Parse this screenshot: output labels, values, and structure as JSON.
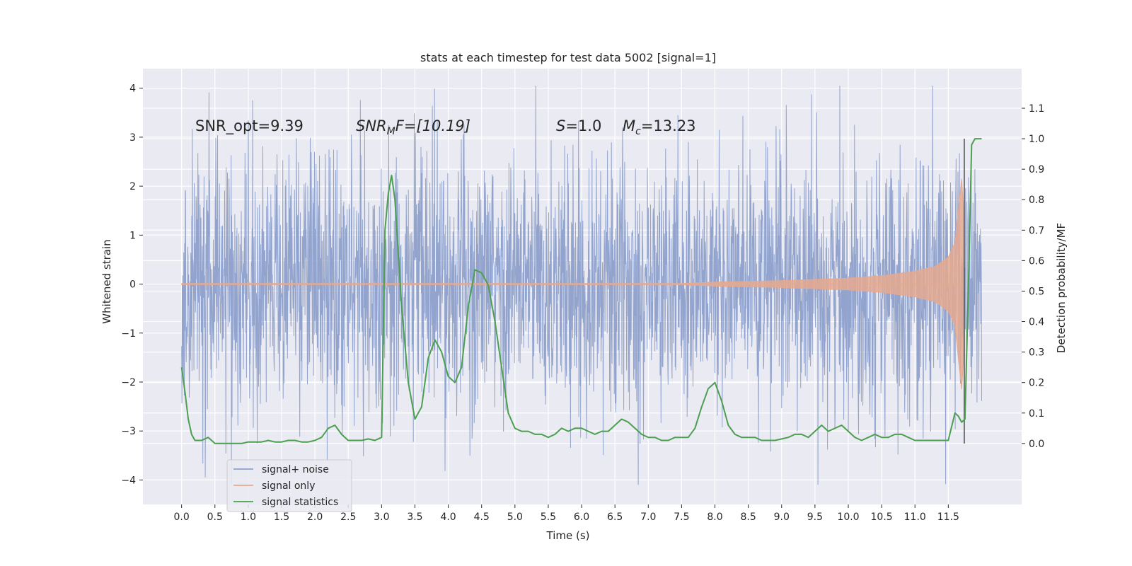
{
  "chart_data": {
    "type": "line",
    "title": "stats at each timestep for test data 5002 [signal=1]",
    "xlabel": "Time (s)",
    "ylabel_left": "Whitened strain",
    "ylabel_right": "Detection probability/MF",
    "xlim": [
      -0.58,
      12.6
    ],
    "ylim_left": [
      -4.5,
      4.4
    ],
    "ylim_right": [
      -0.2,
      1.23
    ],
    "x_ticks": [
      0.0,
      0.5,
      1.0,
      1.5,
      2.0,
      2.5,
      3.0,
      3.5,
      4.0,
      4.5,
      5.0,
      5.5,
      6.0,
      6.5,
      7.0,
      7.5,
      8.0,
      8.5,
      9.0,
      9.5,
      10.0,
      10.5,
      11.0,
      11.5
    ],
    "x_tick_labels": [
      "0.0",
      "0.5",
      "1.0",
      "1.5",
      "2.0",
      "2.5",
      "3.0",
      "3.5",
      "4.0",
      "4.5",
      "5.0",
      "5.5",
      "6.0",
      "6.5",
      "7.0",
      "7.5",
      "8.0",
      "8.5",
      "9.0",
      "9.5",
      "10.0",
      "10.5",
      "11.0",
      "11.5"
    ],
    "y_left_ticks": [
      -4,
      -3,
      -2,
      -1,
      0,
      1,
      2,
      3,
      4
    ],
    "y_left_tick_labels": [
      "−4",
      "−3",
      "−2",
      "−1",
      "0",
      "1",
      "2",
      "3",
      "4"
    ],
    "y_right_ticks": [
      0.0,
      0.1,
      0.2,
      0.3,
      0.4,
      0.5,
      0.6,
      0.7,
      0.8,
      0.9,
      1.0,
      1.1
    ],
    "y_right_tick_labels": [
      "0.0",
      "0.1",
      "0.2",
      "0.3",
      "0.4",
      "0.5",
      "0.6",
      "0.7",
      "0.8",
      "0.9",
      "1.0",
      "1.1"
    ],
    "grid": true,
    "legend": {
      "position": "lower-left",
      "entries": [
        {
          "label": "signal+ noise",
          "color": "#8da0cb"
        },
        {
          "label": "signal only",
          "color": "#e5a98f"
        },
        {
          "label": "signal statistics",
          "color": "#4c9f50"
        }
      ]
    },
    "annotations": {
      "snr_opt": "SNR_opt=9.39",
      "snr_mf_sym": "SNR",
      "snr_mf_sub": "M",
      "snr_mf_val": "F=[10.19]",
      "s_sym": "S",
      "s_val": "=1.0",
      "mc_sym": "M",
      "mc_sub": "c",
      "mc_val": "=13.23"
    },
    "series": [
      {
        "name": "signal+ noise",
        "axis": "left",
        "color": "#8da0cb",
        "x_range": [
          0.0,
          12.0
        ],
        "envelope": {
          "typical_abs": 1.3,
          "max": 4.05,
          "min": -4.1
        }
      },
      {
        "name": "signal only",
        "axis": "left",
        "color": "#e5a98f",
        "x": [
          0.0,
          7.5,
          8.0,
          9.0,
          10.0,
          10.5,
          11.0,
          11.3,
          11.5,
          11.6,
          11.65,
          11.7,
          11.73
        ],
        "amplitude": [
          0.01,
          0.01,
          0.04,
          0.07,
          0.12,
          0.17,
          0.26,
          0.36,
          0.55,
          0.85,
          1.5,
          2.15,
          1.5
        ]
      },
      {
        "name": "signal statistics",
        "axis": "right",
        "color": "#4c9f50",
        "x": [
          0.0,
          0.05,
          0.1,
          0.15,
          0.2,
          0.25,
          0.3,
          0.4,
          0.5,
          0.6,
          0.7,
          0.8,
          0.9,
          1.0,
          1.1,
          1.2,
          1.3,
          1.4,
          1.5,
          1.6,
          1.7,
          1.8,
          1.9,
          2.0,
          2.1,
          2.2,
          2.3,
          2.4,
          2.5,
          2.6,
          2.7,
          2.8,
          2.9,
          3.0,
          3.05,
          3.1,
          3.15,
          3.2,
          3.3,
          3.4,
          3.5,
          3.6,
          3.7,
          3.8,
          3.9,
          4.0,
          4.1,
          4.2,
          4.3,
          4.4,
          4.5,
          4.6,
          4.7,
          4.8,
          4.9,
          5.0,
          5.1,
          5.2,
          5.3,
          5.4,
          5.5,
          5.6,
          5.7,
          5.8,
          5.9,
          6.0,
          6.1,
          6.2,
          6.3,
          6.4,
          6.5,
          6.6,
          6.7,
          6.8,
          6.9,
          7.0,
          7.1,
          7.2,
          7.3,
          7.4,
          7.5,
          7.6,
          7.7,
          7.8,
          7.9,
          8.0,
          8.1,
          8.2,
          8.3,
          8.4,
          8.5,
          8.6,
          8.7,
          8.8,
          8.9,
          9.0,
          9.1,
          9.2,
          9.3,
          9.4,
          9.5,
          9.6,
          9.7,
          9.8,
          9.9,
          10.0,
          10.1,
          10.2,
          10.3,
          10.4,
          10.5,
          10.6,
          10.7,
          10.8,
          10.9,
          11.0,
          11.1,
          11.2,
          11.3,
          11.4,
          11.5,
          11.6,
          11.65,
          11.7,
          11.75,
          11.8,
          11.85,
          11.9,
          12.0
        ],
        "values": [
          0.25,
          0.17,
          0.08,
          0.03,
          0.01,
          0.01,
          0.01,
          0.02,
          0.0,
          0.0,
          0.0,
          0.0,
          0.0,
          0.005,
          0.005,
          0.005,
          0.01,
          0.005,
          0.005,
          0.01,
          0.01,
          0.005,
          0.005,
          0.01,
          0.02,
          0.05,
          0.06,
          0.03,
          0.01,
          0.01,
          0.01,
          0.015,
          0.01,
          0.02,
          0.7,
          0.82,
          0.88,
          0.8,
          0.45,
          0.2,
          0.08,
          0.12,
          0.28,
          0.34,
          0.3,
          0.22,
          0.2,
          0.25,
          0.45,
          0.57,
          0.56,
          0.52,
          0.4,
          0.25,
          0.1,
          0.05,
          0.04,
          0.04,
          0.03,
          0.03,
          0.02,
          0.03,
          0.05,
          0.04,
          0.05,
          0.05,
          0.04,
          0.03,
          0.04,
          0.04,
          0.06,
          0.08,
          0.07,
          0.05,
          0.03,
          0.02,
          0.02,
          0.01,
          0.01,
          0.02,
          0.02,
          0.02,
          0.05,
          0.12,
          0.18,
          0.2,
          0.14,
          0.06,
          0.03,
          0.02,
          0.02,
          0.02,
          0.01,
          0.01,
          0.01,
          0.015,
          0.02,
          0.03,
          0.03,
          0.02,
          0.04,
          0.06,
          0.04,
          0.05,
          0.06,
          0.04,
          0.02,
          0.01,
          0.02,
          0.03,
          0.02,
          0.02,
          0.03,
          0.03,
          0.02,
          0.01,
          0.01,
          0.01,
          0.01,
          0.01,
          0.01,
          0.1,
          0.09,
          0.07,
          0.08,
          0.5,
          0.98,
          1.0,
          1.0
        ]
      }
    ],
    "marker_line": {
      "x": 11.74,
      "color": "#555555"
    }
  }
}
